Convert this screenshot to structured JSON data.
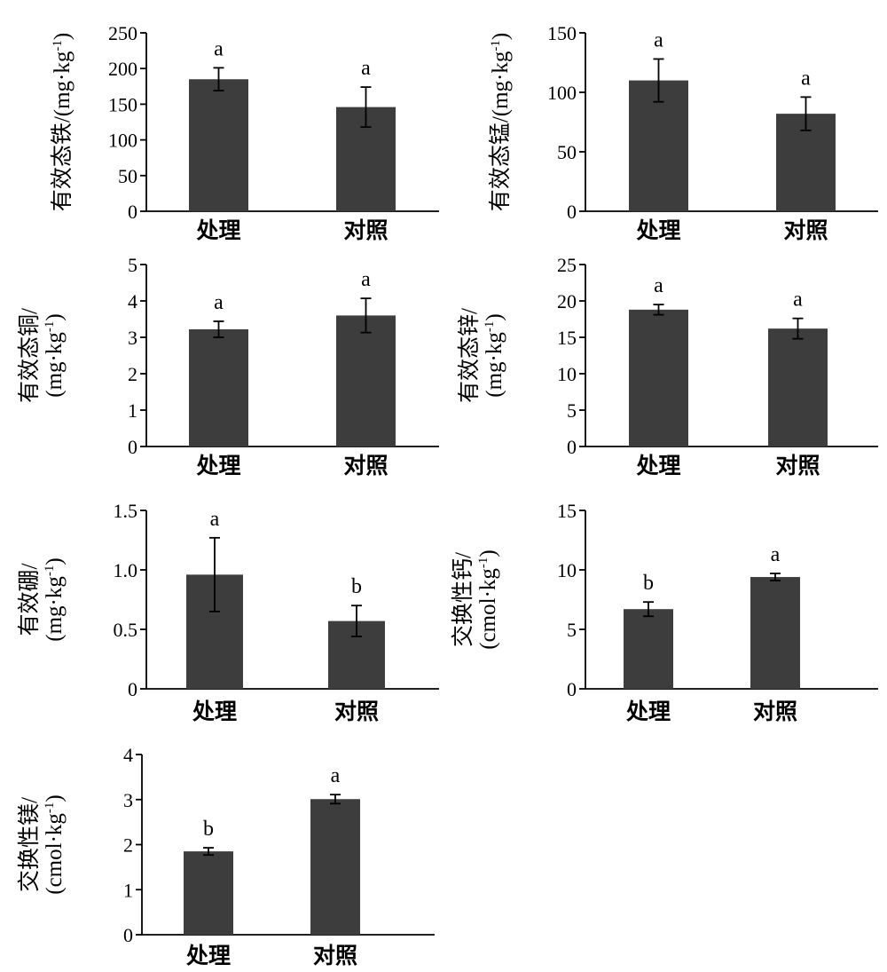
{
  "chart_data": [
    {
      "type": "bar",
      "categories": [
        "处理",
        "对照"
      ],
      "values": [
        185,
        146
      ],
      "errors": [
        16,
        28
      ],
      "significance": [
        "a",
        "a"
      ],
      "ylabel": [
        "有效态铁/(mg·kg",
        ")"
      ],
      "ylim": [
        0,
        250
      ],
      "yticks": [
        "0",
        "50",
        "100",
        "150",
        "200",
        "250"
      ],
      "ytick_values": [
        0,
        50,
        100,
        150,
        200,
        250
      ]
    },
    {
      "type": "bar",
      "categories": [
        "处理",
        "对照"
      ],
      "values": [
        110,
        82
      ],
      "errors": [
        18,
        14
      ],
      "significance": [
        "a",
        "a"
      ],
      "ylabel": [
        "有效态锰/(mg·kg",
        ")"
      ],
      "ylim": [
        0,
        150
      ],
      "yticks": [
        "0",
        "50",
        "100",
        "150"
      ],
      "ytick_values": [
        0,
        50,
        100,
        150
      ]
    },
    {
      "type": "bar",
      "categories": [
        "处理",
        "对照"
      ],
      "values": [
        3.22,
        3.6
      ],
      "errors": [
        0.22,
        0.47
      ],
      "significance": [
        "a",
        "a"
      ],
      "ylabel": [
        "有效态铜/",
        "(mg·kg",
        ")"
      ],
      "ylim": [
        0,
        5
      ],
      "yticks": [
        "0",
        "1",
        "2",
        "3",
        "4",
        "5"
      ],
      "ytick_values": [
        0,
        1,
        2,
        3,
        4,
        5
      ]
    },
    {
      "type": "bar",
      "categories": [
        "处理",
        "对照"
      ],
      "values": [
        18.8,
        16.2
      ],
      "errors": [
        0.7,
        1.4
      ],
      "significance": [
        "a",
        "a"
      ],
      "ylabel": [
        "有效态锌/",
        "(mg·kg",
        ")"
      ],
      "ylim": [
        0,
        25
      ],
      "yticks": [
        "0",
        "5",
        "10",
        "15",
        "20",
        "25"
      ],
      "ytick_values": [
        0,
        5,
        10,
        15,
        20,
        25
      ]
    },
    {
      "type": "bar",
      "categories": [
        "处理",
        "对照"
      ],
      "values": [
        0.96,
        0.57
      ],
      "errors": [
        0.31,
        0.13
      ],
      "significance": [
        "a",
        "b"
      ],
      "ylabel": [
        "有效硼/",
        "(mg·kg",
        ")"
      ],
      "ylim": [
        0,
        1.5
      ],
      "yticks": [
        "0",
        "0.5",
        "1.0",
        "1.5"
      ],
      "ytick_values": [
        0,
        0.5,
        1.0,
        1.5
      ]
    },
    {
      "type": "bar",
      "categories": [
        "处理",
        "对照"
      ],
      "values": [
        6.7,
        9.4
      ],
      "errors": [
        0.6,
        0.3
      ],
      "significance": [
        "b",
        "a"
      ],
      "ylabel": [
        "交换性钙/",
        "(cmol·kg",
        ")"
      ],
      "ylim": [
        0,
        15
      ],
      "yticks": [
        "0",
        "5",
        "10",
        "15"
      ],
      "ytick_values": [
        0,
        5,
        10,
        15
      ]
    },
    {
      "type": "bar",
      "categories": [
        "处理",
        "对照"
      ],
      "values": [
        1.85,
        3.01
      ],
      "errors": [
        0.08,
        0.1
      ],
      "significance": [
        "b",
        "a"
      ],
      "ylabel": [
        "交换性镁/",
        "(cmol·kg",
        ")"
      ],
      "ylim": [
        0,
        4
      ],
      "yticks": [
        "0",
        "1",
        "2",
        "3",
        "4"
      ],
      "ytick_values": [
        0,
        1,
        2,
        3,
        4
      ]
    }
  ],
  "style": {
    "bar_color": "#3d3d3d",
    "axis_color": "#000000"
  },
  "superscript": "-1"
}
